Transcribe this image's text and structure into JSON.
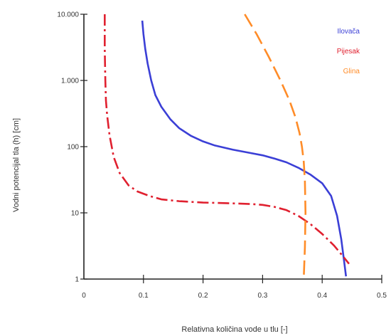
{
  "chart_data": {
    "type": "line",
    "title": "",
    "xlabel": "Relativna količina vode u tlu [-]",
    "ylabel": "Vodni potencijal tla (h) [cm]",
    "xlim": [
      0,
      0.5
    ],
    "ylim": [
      1,
      10000
    ],
    "yscale": "log",
    "grid": false,
    "legend": "top-right",
    "x_ticks": [
      {
        "value": 0,
        "label": "0"
      },
      {
        "value": 0.1,
        "label": "0.1"
      },
      {
        "value": 0.2,
        "label": "0.2"
      },
      {
        "value": 0.3,
        "label": "0.3"
      },
      {
        "value": 0.4,
        "label": "0.4"
      },
      {
        "value": 0.5,
        "label": "0.5"
      }
    ],
    "y_ticks": [
      {
        "value": 1,
        "label": "1"
      },
      {
        "value": 10,
        "label": "10"
      },
      {
        "value": 100,
        "label": "100"
      },
      {
        "value": 1000,
        "label": "1.000"
      },
      {
        "value": 10000,
        "label": "10.000"
      }
    ],
    "series": [
      {
        "name": "Ilovača",
        "color": "#3b3fd6",
        "dash": "solid",
        "points": [
          [
            0.098,
            8000
          ],
          [
            0.1,
            5000
          ],
          [
            0.103,
            3000
          ],
          [
            0.107,
            1800
          ],
          [
            0.113,
            1000
          ],
          [
            0.12,
            600
          ],
          [
            0.13,
            400
          ],
          [
            0.145,
            260
          ],
          [
            0.16,
            190
          ],
          [
            0.18,
            145
          ],
          [
            0.2,
            120
          ],
          [
            0.22,
            104
          ],
          [
            0.25,
            90
          ],
          [
            0.28,
            80
          ],
          [
            0.3,
            74
          ],
          [
            0.32,
            66
          ],
          [
            0.34,
            58
          ],
          [
            0.36,
            48
          ],
          [
            0.38,
            38
          ],
          [
            0.4,
            28
          ],
          [
            0.415,
            18
          ],
          [
            0.425,
            9
          ],
          [
            0.432,
            4
          ],
          [
            0.437,
            1.8
          ],
          [
            0.44,
            1.1
          ]
        ]
      },
      {
        "name": "Pijesak",
        "color": "#e0202f",
        "dash": "dashdot",
        "points": [
          [
            0.035,
            10000
          ],
          [
            0.035,
            3000
          ],
          [
            0.036,
            1000
          ],
          [
            0.037,
            500
          ],
          [
            0.039,
            300
          ],
          [
            0.043,
            150
          ],
          [
            0.05,
            70
          ],
          [
            0.06,
            40
          ],
          [
            0.075,
            26
          ],
          [
            0.09,
            21
          ],
          [
            0.11,
            18
          ],
          [
            0.13,
            16
          ],
          [
            0.16,
            15
          ],
          [
            0.2,
            14.3
          ],
          [
            0.24,
            14
          ],
          [
            0.28,
            13.6
          ],
          [
            0.3,
            13.2
          ],
          [
            0.32,
            12.3
          ],
          [
            0.34,
            11
          ],
          [
            0.36,
            9
          ],
          [
            0.38,
            6.8
          ],
          [
            0.4,
            4.8
          ],
          [
            0.42,
            3.2
          ],
          [
            0.435,
            2.2
          ],
          [
            0.445,
            1.7
          ]
        ]
      },
      {
        "name": "Glina",
        "color": "#ff8c28",
        "dash": "long-dash",
        "points": [
          [
            0.27,
            10000
          ],
          [
            0.29,
            5000
          ],
          [
            0.31,
            2300
          ],
          [
            0.33,
            1000
          ],
          [
            0.345,
            500
          ],
          [
            0.355,
            280
          ],
          [
            0.362,
            160
          ],
          [
            0.366,
            100
          ],
          [
            0.369,
            60
          ],
          [
            0.371,
            30
          ],
          [
            0.372,
            10
          ],
          [
            0.371,
            3
          ],
          [
            0.369,
            1
          ]
        ]
      }
    ]
  }
}
